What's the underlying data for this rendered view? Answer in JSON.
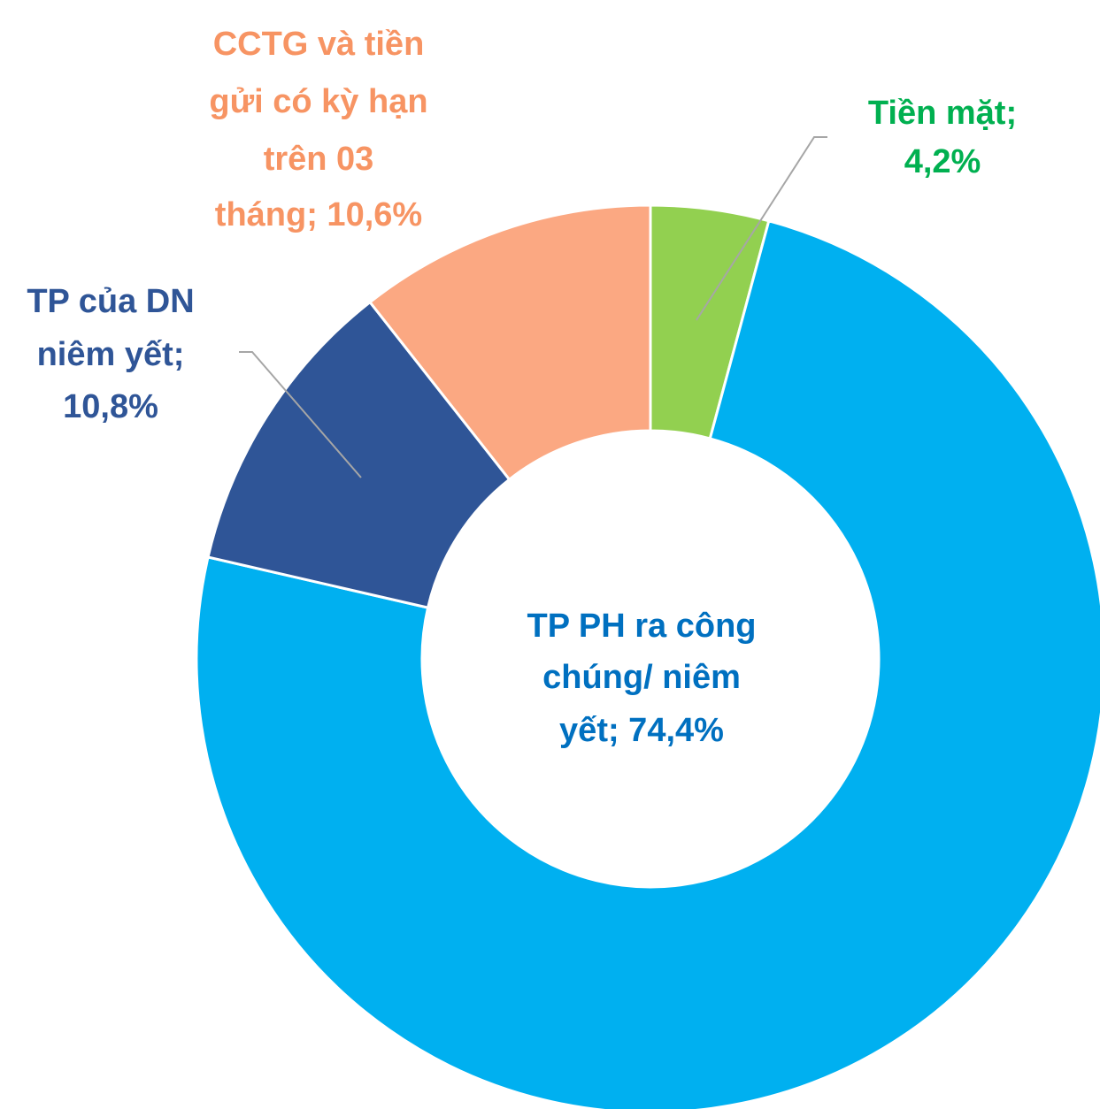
{
  "chart_data": {
    "type": "donut",
    "values": [
      4.2,
      74.4,
      10.8,
      10.6
    ],
    "value_labels": [
      [
        "Tiền mặt;",
        "4,2%"
      ],
      [
        "TP PH ra công",
        "chúng/ niêm",
        "yết; 74,4%"
      ],
      [
        "TP của DN",
        "niêm yết;",
        "10,8%"
      ],
      [
        "CCTG và tiền",
        "gửi có kỳ hạn",
        "trên 03",
        "tháng; 10,6%"
      ]
    ],
    "colors": [
      "#92d050",
      "#00b0f0",
      "#2f5597",
      "#fba882"
    ],
    "label_colors": [
      "#00b050",
      "#0070c0",
      "#2f5597",
      "#f79463"
    ]
  }
}
